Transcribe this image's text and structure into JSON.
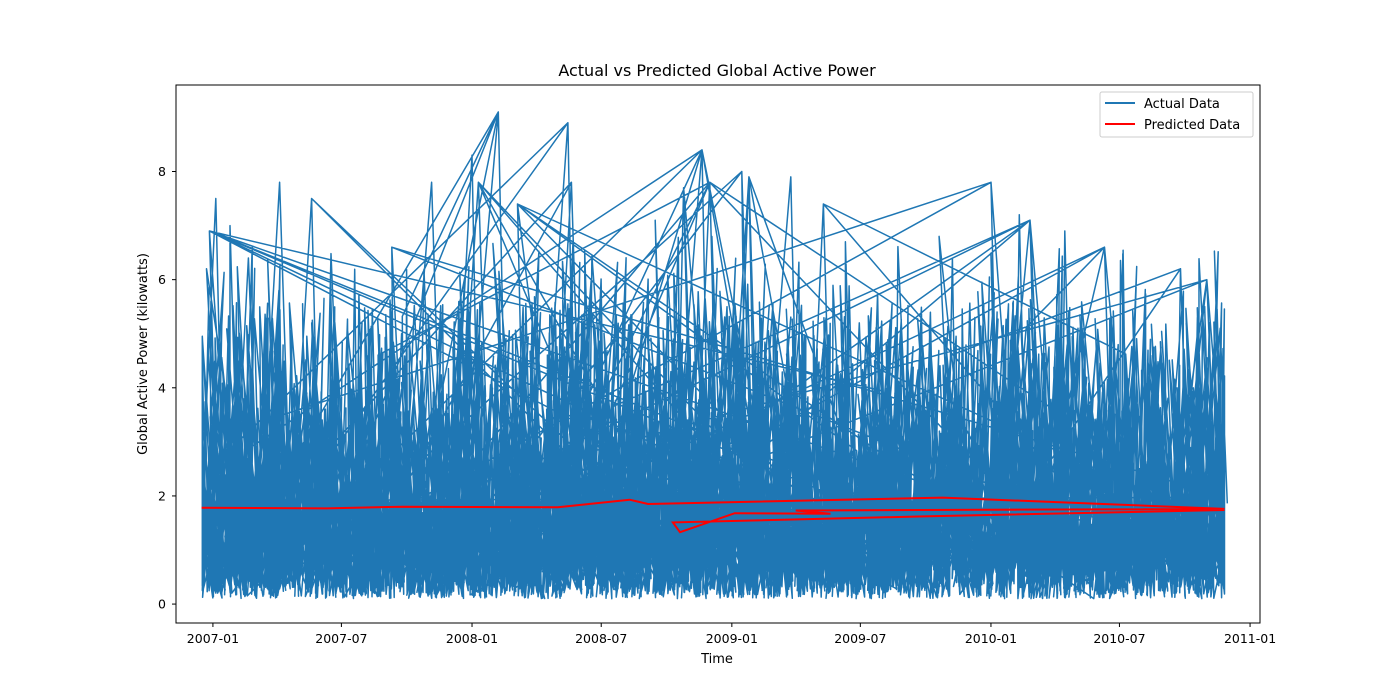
{
  "chart_data": {
    "type": "line",
    "title": "Actual vs Predicted Global Active Power",
    "xlabel": "Time",
    "ylabel": "Global Active Power (kilowatts)",
    "xlim": [
      "2006-11-10",
      "2011-01-15"
    ],
    "ylim": [
      -0.35,
      9.6
    ],
    "xticks": [
      "2007-01",
      "2007-07",
      "2008-01",
      "2008-07",
      "2009-01",
      "2009-07",
      "2010-01",
      "2010-07",
      "2011-01"
    ],
    "yticks": [
      0,
      2,
      4,
      6,
      8
    ],
    "grid": false,
    "legend": "top-right",
    "colors": {
      "actual": "#1f77b4",
      "predicted": "#ff0000"
    },
    "series": [
      {
        "name": "Actual Data",
        "color": "#1f77b4",
        "band": {
          "low": 0.1,
          "typical_high": 4.0,
          "max": 9.1
        },
        "peaks": [
          {
            "x": "2006-12-23",
            "y": 6.2
          },
          {
            "x": "2006-12-27",
            "y": 6.9
          },
          {
            "x": "2007-01-05",
            "y": 7.5
          },
          {
            "x": "2007-01-25",
            "y": 7.0
          },
          {
            "x": "2007-02-20",
            "y": 6.4
          },
          {
            "x": "2007-04-05",
            "y": 7.8
          },
          {
            "x": "2007-05-20",
            "y": 7.5
          },
          {
            "x": "2007-09-10",
            "y": 6.6
          },
          {
            "x": "2007-11-05",
            "y": 7.8
          },
          {
            "x": "2008-01-01",
            "y": 8.3
          },
          {
            "x": "2008-01-10",
            "y": 7.8
          },
          {
            "x": "2008-02-07",
            "y": 9.1
          },
          {
            "x": "2008-03-05",
            "y": 7.4
          },
          {
            "x": "2008-05-15",
            "y": 8.9
          },
          {
            "x": "2008-05-20",
            "y": 7.8
          },
          {
            "x": "2008-09-15",
            "y": 7.1
          },
          {
            "x": "2008-10-25",
            "y": 7.7
          },
          {
            "x": "2008-11-20",
            "y": 8.4
          },
          {
            "x": "2008-12-01",
            "y": 7.8
          },
          {
            "x": "2009-01-15",
            "y": 8.0
          },
          {
            "x": "2009-01-25",
            "y": 7.9
          },
          {
            "x": "2009-03-25",
            "y": 7.9
          },
          {
            "x": "2009-05-10",
            "y": 7.4
          },
          {
            "x": "2009-06-10",
            "y": 6.7
          },
          {
            "x": "2009-10-20",
            "y": 6.8
          },
          {
            "x": "2010-01-01",
            "y": 7.8
          },
          {
            "x": "2010-02-10",
            "y": 7.2
          },
          {
            "x": "2010-02-25",
            "y": 7.1
          },
          {
            "x": "2010-04-15",
            "y": 6.9
          },
          {
            "x": "2010-06-10",
            "y": 6.6
          },
          {
            "x": "2010-09-25",
            "y": 6.2
          },
          {
            "x": "2010-11-01",
            "y": 6.0
          },
          {
            "x": "2010-11-20",
            "y": 5.1
          }
        ]
      },
      {
        "name": "Predicted Data",
        "color": "#ff0000",
        "points": [
          {
            "x": "2006-12-16",
            "y": 1.78
          },
          {
            "x": "2007-06-10",
            "y": 1.77
          },
          {
            "x": "2007-09-25",
            "y": 1.8
          },
          {
            "x": "2008-05-01",
            "y": 1.79
          },
          {
            "x": "2008-08-10",
            "y": 1.93
          },
          {
            "x": "2008-09-05",
            "y": 1.85
          },
          {
            "x": "2009-10-25",
            "y": 1.97
          },
          {
            "x": "2010-11-26",
            "y": 1.76
          },
          {
            "x": "2009-04-01",
            "y": 1.73
          },
          {
            "x": "2009-05-20",
            "y": 1.67
          },
          {
            "x": "2009-01-05",
            "y": 1.68
          },
          {
            "x": "2008-10-20",
            "y": 1.33
          },
          {
            "x": "2008-10-10",
            "y": 1.51
          },
          {
            "x": "2009-09-20",
            "y": 1.62
          },
          {
            "x": "2010-11-26",
            "y": 1.74
          }
        ]
      }
    ]
  }
}
